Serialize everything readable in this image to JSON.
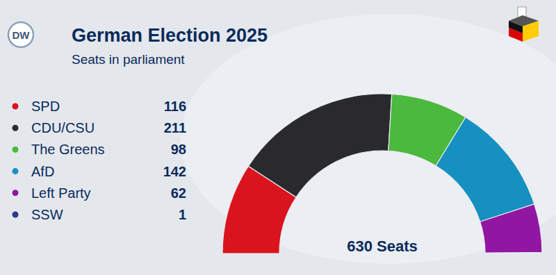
{
  "chart_data": {
    "type": "donut",
    "title": "German Election 2025",
    "subtitle": "Seats in parliament",
    "source": "DW",
    "annotation": "630 Seats",
    "legend": "left",
    "categories": [
      "SPD",
      "CDU/CSU",
      "The Greens",
      "AfD",
      "Left Party",
      "SSW"
    ],
    "values": [
      116,
      211,
      98,
      142,
      62,
      1
    ],
    "colors": [
      "#d9141c",
      "#2a2a2e",
      "#4bb83e",
      "#1690c0",
      "#9117a3",
      "#2b3a8c"
    ]
  }
}
